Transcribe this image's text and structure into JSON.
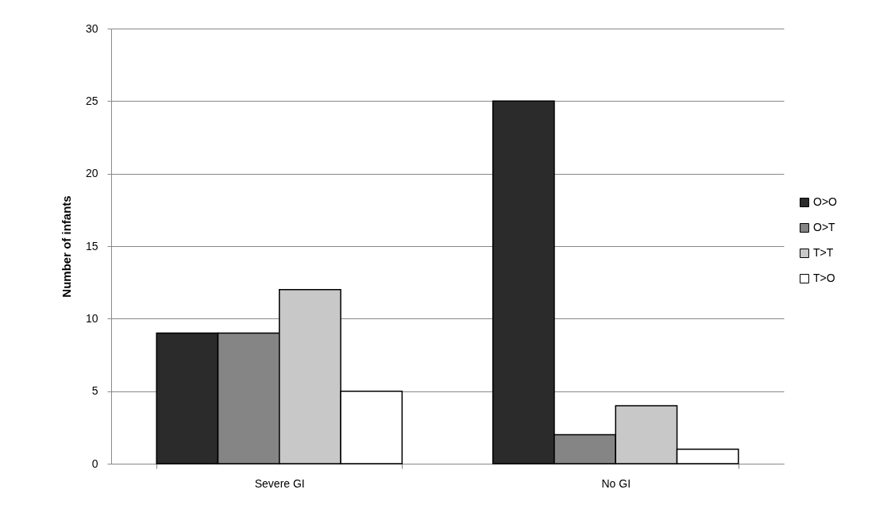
{
  "chart_data": {
    "type": "bar",
    "ylabel": "Number of infants",
    "categories": [
      "Severe GI",
      "No GI"
    ],
    "series": [
      {
        "name": "O>O",
        "color": "#2b2b2b",
        "values": [
          9,
          25
        ]
      },
      {
        "name": "O>T",
        "color": "#858585",
        "values": [
          9,
          2
        ]
      },
      {
        "name": "T>T",
        "color": "#c8c8c8",
        "values": [
          12,
          4
        ]
      },
      {
        "name": "T>O",
        "color": "#ffffff",
        "values": [
          5,
          1
        ]
      }
    ],
    "ylim": [
      0,
      30
    ],
    "yticks": [
      0,
      5,
      10,
      15,
      20,
      25,
      30
    ],
    "grid": "y",
    "legend": "right"
  }
}
